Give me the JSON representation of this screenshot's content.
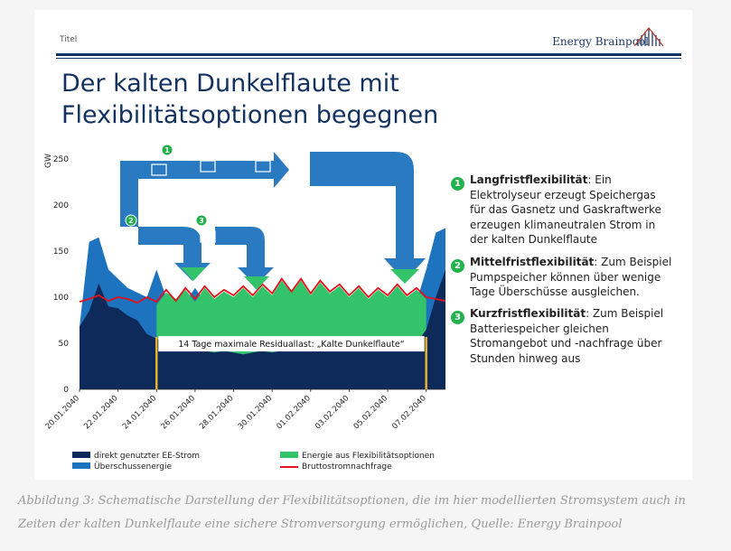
{
  "header": {
    "titel": "Titel",
    "brand": "Energy Brainpool"
  },
  "headline": {
    "line1": "Der kalten Dunkelflaute mit",
    "line2": "Flexibilitätsoptionen begegnen"
  },
  "colors": {
    "navy": "#12315f",
    "ee_direct": "#0d2a5a",
    "surplus": "#1e73be",
    "flex": "#33c36b",
    "demand": "#e3121b",
    "highlight": "#e6b22a",
    "badge": "#21b24b"
  },
  "options": [
    {
      "num": "1",
      "title": "Langfristflexibilität",
      "text": ": Ein Elektrolyseur erzeugt Speichergas für das Gasnetz und Gaskraftwerke erzeugen klimaneutralen Strom in der kalten Dunkelflaute"
    },
    {
      "num": "2",
      "title": "Mittelfristflexibilität",
      "text": ": Zum Beispiel Pumpspeicher können über wenige Tage Überschüsse ausgleichen."
    },
    {
      "num": "3",
      "title": "Kurzfristflexibilität",
      "text": ": Zum Beispiel Batteriespeicher gleichen Stromangebot und -nachfrage über Stunden hinweg aus"
    }
  ],
  "icons": [
    "network-icon",
    "gas-plant-icon",
    "gas-storage-icon",
    "pumped-storage-icon",
    "battery-icon"
  ],
  "chart_data": {
    "type": "area",
    "ylabel": "GW",
    "ylim": [
      0,
      250
    ],
    "yticks": [
      0,
      50,
      100,
      150,
      200,
      250
    ],
    "xticks": [
      "20.01.2040",
      "22.01.2040",
      "24.01.2040",
      "26.01.2040",
      "28.01.2040",
      "30.01.2040",
      "01.02.2040",
      "03.02.2040",
      "05.02.2040",
      "07.02.2040"
    ],
    "xlim_days": [
      0,
      19
    ],
    "annotation": {
      "text": "14 Tage maximale Residuallast: „Kalte Dunkelflaute“",
      "start_day": 4,
      "end_day": 18,
      "y": 45
    },
    "series": [
      {
        "name": "direkt genutzter EE-Strom",
        "kind": "area",
        "points": [
          [
            0,
            68
          ],
          [
            0.5,
            85
          ],
          [
            1,
            115
          ],
          [
            1.5,
            90
          ],
          [
            2,
            88
          ],
          [
            2.5,
            80
          ],
          [
            3,
            75
          ],
          [
            3.5,
            60
          ],
          [
            4,
            55
          ],
          [
            4.5,
            50
          ],
          [
            5,
            45
          ],
          [
            5.5,
            45
          ],
          [
            6,
            43
          ],
          [
            6.5,
            42
          ],
          [
            7,
            40
          ],
          [
            7.5,
            42
          ],
          [
            8,
            40
          ],
          [
            8.5,
            38
          ],
          [
            9,
            40
          ],
          [
            9.5,
            42
          ],
          [
            10,
            40
          ],
          [
            10.5,
            42
          ],
          [
            11,
            45
          ],
          [
            11.5,
            45
          ],
          [
            12,
            45
          ],
          [
            12.5,
            45
          ],
          [
            13,
            48
          ],
          [
            13.5,
            50
          ],
          [
            14,
            48
          ],
          [
            14.5,
            45
          ],
          [
            15,
            45
          ],
          [
            15.5,
            45
          ],
          [
            16,
            48
          ],
          [
            16.5,
            50
          ],
          [
            17,
            52
          ],
          [
            17.5,
            50
          ],
          [
            18,
            65
          ],
          [
            18.5,
            100
          ],
          [
            19,
            130
          ]
        ]
      },
      {
        "name": "Überschussenergie",
        "kind": "area",
        "points": [
          [
            0,
            68
          ],
          [
            0.5,
            160
          ],
          [
            1,
            165
          ],
          [
            1.5,
            130
          ],
          [
            2,
            120
          ],
          [
            2.5,
            110
          ],
          [
            3,
            105
          ],
          [
            3.5,
            100
          ],
          [
            4,
            130
          ],
          [
            4.5,
            100
          ],
          [
            5,
            95
          ],
          [
            5.5,
            95
          ],
          [
            6,
            110
          ],
          [
            6.5,
            95
          ],
          [
            7,
            95
          ],
          [
            7.5,
            90
          ],
          [
            8,
            90
          ],
          [
            8.5,
            90
          ],
          [
            9,
            88
          ],
          [
            9.5,
            90
          ],
          [
            10,
            92
          ],
          [
            10.5,
            92
          ],
          [
            11,
            95
          ],
          [
            11.5,
            95
          ],
          [
            12,
            95
          ],
          [
            12.5,
            95
          ],
          [
            13,
            95
          ],
          [
            13.5,
            95
          ],
          [
            14,
            95
          ],
          [
            14.5,
            95
          ],
          [
            15,
            95
          ],
          [
            15.5,
            95
          ],
          [
            16,
            95
          ],
          [
            16.5,
            95
          ],
          [
            17,
            95
          ],
          [
            17.5,
            95
          ],
          [
            18,
            130
          ],
          [
            18.5,
            170
          ],
          [
            19,
            175
          ]
        ]
      },
      {
        "name": "Energie aus Flexibilitätsoptionen",
        "kind": "band",
        "lower": [
          [
            4,
            55
          ],
          [
            4.5,
            50
          ],
          [
            5,
            45
          ],
          [
            5.5,
            45
          ],
          [
            6,
            43
          ],
          [
            6.5,
            42
          ],
          [
            7,
            40
          ],
          [
            7.5,
            42
          ],
          [
            8,
            40
          ],
          [
            8.5,
            38
          ],
          [
            9,
            40
          ],
          [
            9.5,
            42
          ],
          [
            10,
            40
          ],
          [
            10.5,
            42
          ],
          [
            11,
            45
          ],
          [
            11.5,
            45
          ],
          [
            12,
            45
          ],
          [
            12.5,
            45
          ],
          [
            13,
            48
          ],
          [
            13.5,
            50
          ],
          [
            14,
            48
          ],
          [
            14.5,
            45
          ],
          [
            15,
            45
          ],
          [
            15.5,
            45
          ],
          [
            16,
            48
          ],
          [
            16.5,
            50
          ],
          [
            17,
            52
          ],
          [
            17.5,
            50
          ],
          [
            18,
            65
          ]
        ],
        "upper": [
          [
            4,
            92
          ],
          [
            4.5,
            105
          ],
          [
            5,
            98
          ],
          [
            5.5,
            108
          ],
          [
            6,
            95
          ],
          [
            6.5,
            110
          ],
          [
            7,
            98
          ],
          [
            7.5,
            106
          ],
          [
            8,
            100
          ],
          [
            8.5,
            110
          ],
          [
            9,
            100
          ],
          [
            9.5,
            112
          ],
          [
            10,
            102
          ],
          [
            10.5,
            118
          ],
          [
            11,
            105
          ],
          [
            11.5,
            118
          ],
          [
            12,
            102
          ],
          [
            12.5,
            116
          ],
          [
            13,
            104
          ],
          [
            13.5,
            112
          ],
          [
            14,
            100
          ],
          [
            14.5,
            110
          ],
          [
            15,
            98
          ],
          [
            15.5,
            108
          ],
          [
            16,
            100
          ],
          [
            16.5,
            112
          ],
          [
            17,
            100
          ],
          [
            17.5,
            108
          ],
          [
            18,
            98
          ]
        ]
      },
      {
        "name": "Bruttostromnachfrage",
        "kind": "line",
        "points": [
          [
            0,
            95
          ],
          [
            0.5,
            98
          ],
          [
            1,
            102
          ],
          [
            1.5,
            96
          ],
          [
            2,
            100
          ],
          [
            2.5,
            98
          ],
          [
            3,
            94
          ],
          [
            3.5,
            100
          ],
          [
            4,
            95
          ],
          [
            4.5,
            108
          ],
          [
            5,
            96
          ],
          [
            5.5,
            110
          ],
          [
            6,
            98
          ],
          [
            6.5,
            112
          ],
          [
            7,
            100
          ],
          [
            7.5,
            108
          ],
          [
            8,
            102
          ],
          [
            8.5,
            112
          ],
          [
            9,
            102
          ],
          [
            9.5,
            114
          ],
          [
            10,
            104
          ],
          [
            10.5,
            120
          ],
          [
            11,
            106
          ],
          [
            11.5,
            120
          ],
          [
            12,
            104
          ],
          [
            12.5,
            118
          ],
          [
            13,
            106
          ],
          [
            13.5,
            114
          ],
          [
            14,
            102
          ],
          [
            14.5,
            112
          ],
          [
            15,
            100
          ],
          [
            15.5,
            110
          ],
          [
            16,
            102
          ],
          [
            16.5,
            114
          ],
          [
            17,
            102
          ],
          [
            17.5,
            110
          ],
          [
            18,
            100
          ],
          [
            18.5,
            98
          ],
          [
            19,
            96
          ]
        ]
      }
    ],
    "legend": [
      "direkt genutzter EE-Strom",
      "Überschussenergie",
      "Energie aus Flexibilitätsoptionen",
      "Bruttostromnachfrage"
    ]
  },
  "caption": "Abbildung 3: Schematische Darstellung der Flexibilitätsoptionen, die im hier modellierten Stromsystem auch in Zeiten der kalten Dunkelflaute eine sichere Stromversorgung ermöglichen, Quelle: Energy Brainpool"
}
